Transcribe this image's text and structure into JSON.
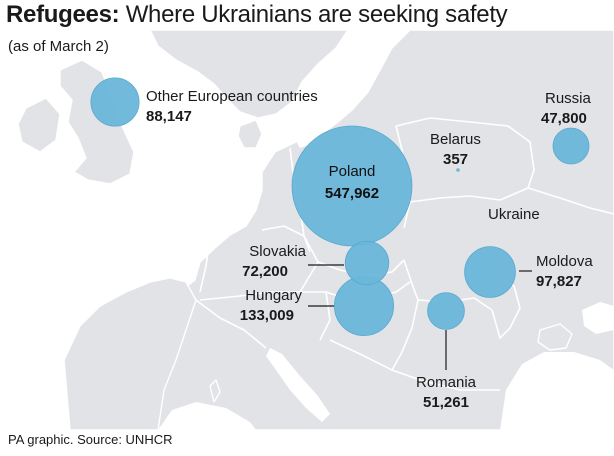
{
  "header": {
    "title_bold": "Refugees:",
    "title_rest": "Where Ukrainians are seeking safety",
    "subtitle": "(as of March 2)"
  },
  "footer": {
    "source": "PA graphic. Source: UNHCR"
  },
  "colors": {
    "land": "#e1e3e6",
    "sea": "#ffffff",
    "border": "#ffffff",
    "bubble": "#6ab6da",
    "bubble_stroke": "#5aa8cf",
    "leader": "#1a1a1a"
  },
  "map": {
    "country_labels": {
      "ukraine": "Ukraine",
      "belarus": "Belarus",
      "belarus_value": "357"
    }
  },
  "chart_data": {
    "type": "bubble-map",
    "title": "Refugees: Where Ukrainians are seeking safety",
    "subtitle": "(as of March 2)",
    "destinations": [
      {
        "key": "poland",
        "name": "Poland",
        "value": 547962,
        "label": "547,962"
      },
      {
        "key": "hungary",
        "name": "Hungary",
        "value": 133009,
        "label": "133,009"
      },
      {
        "key": "moldova",
        "name": "Moldova",
        "value": 97827,
        "label": "97,827"
      },
      {
        "key": "other",
        "name": "Other European countries",
        "value": 88147,
        "label": "88,147"
      },
      {
        "key": "slovakia",
        "name": "Slovakia",
        "value": 72200,
        "label": "72,200"
      },
      {
        "key": "romania",
        "name": "Romania",
        "value": 51261,
        "label": "51,261"
      },
      {
        "key": "russia",
        "name": "Russia",
        "value": 47800,
        "label": "47,800"
      },
      {
        "key": "belarus",
        "name": "Belarus",
        "value": 357,
        "label": "357"
      }
    ]
  }
}
